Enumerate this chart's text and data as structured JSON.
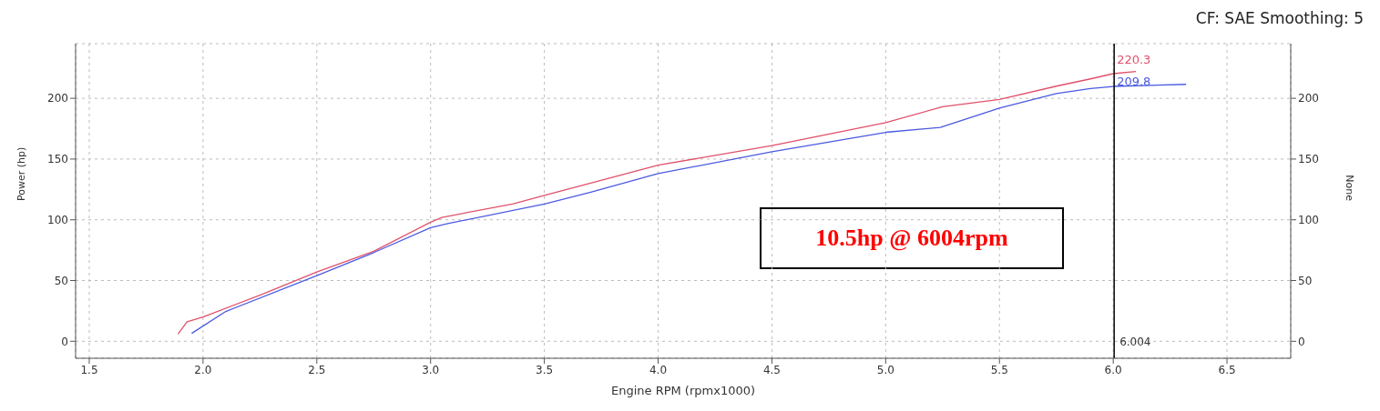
{
  "chart_data": {
    "type": "line",
    "xlabel": "Engine RPM (rpmx1000)",
    "ylabel": "Power (hp)",
    "y2label": "None",
    "xlim": [
      1.44,
      6.78
    ],
    "xticks": [
      {
        "value": 1.5,
        "label": "1.5"
      },
      {
        "value": 2,
        "label": "2.0"
      },
      {
        "value": 2.5,
        "label": "2.5"
      },
      {
        "value": 3,
        "label": "3.0"
      },
      {
        "value": 3.5,
        "label": "3.5"
      },
      {
        "value": 4,
        "label": "4.0"
      },
      {
        "value": 4.5,
        "label": "4.5"
      },
      {
        "value": 5,
        "label": "5.0"
      },
      {
        "value": 5.5,
        "label": "5.5"
      },
      {
        "value": 6,
        "label": "6.0"
      },
      {
        "value": 6.5,
        "label": "6.5"
      }
    ],
    "ylim": [
      -14,
      245
    ],
    "yticks": [
      0,
      50,
      100,
      150,
      200
    ],
    "y2lim": [
      -14,
      245
    ],
    "y2ticks": [
      0,
      50,
      100,
      150,
      200
    ],
    "grid": true,
    "legend": false,
    "marker": "none",
    "line_style": "solid",
    "series": [
      {
        "color": "#e0506a",
        "x": [
          1.89,
          1.93,
          2.0,
          2.25,
          2.5,
          2.75,
          3.0,
          3.05,
          3.36,
          3.5,
          3.7,
          4.0,
          4.5,
          5.0,
          5.25,
          5.5,
          5.75,
          5.9,
          6.0,
          6.1
        ],
        "values": [
          6,
          16,
          20,
          38,
          57,
          74,
          98,
          102,
          113,
          120,
          130,
          145,
          161,
          180,
          193,
          199,
          210,
          216,
          220.3,
          222
        ]
      },
      {
        "color": "#4a5ae0",
        "x": [
          1.95,
          2.1,
          2.5,
          2.75,
          3.0,
          3.08,
          3.5,
          3.7,
          4.0,
          4.5,
          5.0,
          5.24,
          5.5,
          5.75,
          5.9,
          6.0,
          6.32
        ],
        "values": [
          6.5,
          24.5,
          54,
          73,
          93.5,
          97,
          113,
          122.5,
          138,
          156,
          172,
          176,
          192,
          204,
          208,
          209.8,
          211.5
        ]
      }
    ],
    "ref_lines": [
      {
        "axis": "x",
        "value": 6.004,
        "label": "6.004",
        "color": "#000000"
      }
    ],
    "annotations": [
      "CF: SAE Smoothing: 5",
      "10.5hp @ 6004rpm",
      {
        "text": "220.3",
        "x": 6.0,
        "y": 220.3
      },
      {
        "text": "209.8",
        "x": 6.0,
        "y": 209.8
      }
    ]
  }
}
